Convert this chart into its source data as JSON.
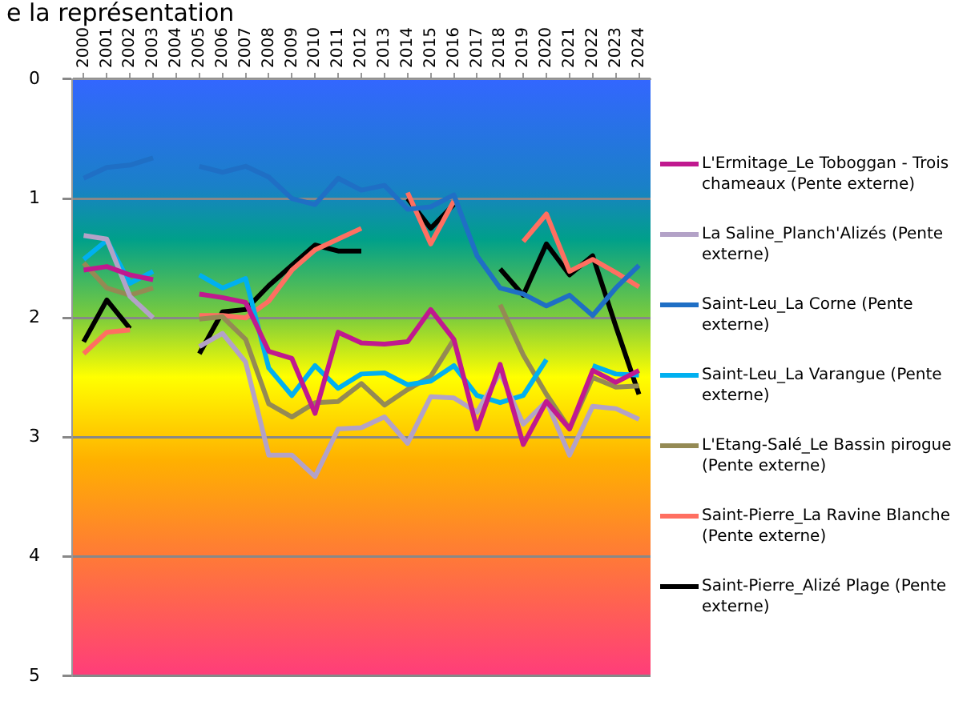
{
  "chart_data": {
    "type": "line",
    "title": "e la représentation",
    "categories": [
      "2000",
      "2001",
      "2002",
      "2003",
      "2004",
      "2005",
      "2006",
      "2007",
      "2008",
      "2009",
      "2010",
      "2011",
      "2012",
      "2013",
      "2014",
      "2015",
      "2016",
      "2017",
      "2018",
      "2019",
      "2020",
      "2021",
      "2022",
      "2023",
      "2024"
    ],
    "series": [
      {
        "name": "L'Ermitage_Le Toboggan - Trois chameaux (Pente externe)",
        "color": "#c0198f",
        "values": [
          1.6,
          1.57,
          1.64,
          1.68,
          null,
          1.8,
          1.83,
          1.87,
          2.28,
          2.34,
          2.8,
          2.12,
          2.21,
          2.22,
          2.2,
          1.93,
          2.18,
          2.93,
          2.39,
          3.06,
          2.7,
          2.93,
          2.44,
          2.54,
          2.44
        ]
      },
      {
        "name": "La Saline_Planch'Alizés (Pente externe)",
        "color": "#b3a2c7",
        "values": [
          1.31,
          1.34,
          1.82,
          2.0,
          null,
          2.24,
          2.13,
          2.37,
          3.15,
          3.15,
          3.33,
          2.93,
          2.92,
          2.83,
          3.05,
          2.66,
          2.67,
          2.79,
          2.46,
          2.89,
          2.7,
          3.15,
          2.74,
          2.76,
          2.85
        ]
      },
      {
        "name": "Saint-Leu_La Corne (Pente externe)",
        "color": "#1f6fc5",
        "values": [
          0.83,
          0.74,
          0.72,
          0.66,
          null,
          0.73,
          0.78,
          0.73,
          0.82,
          1.0,
          1.05,
          0.83,
          0.93,
          0.89,
          1.09,
          1.07,
          0.97,
          1.48,
          1.75,
          1.8,
          1.9,
          1.81,
          1.98,
          1.75,
          1.56
        ]
      },
      {
        "name": "Saint-Leu_La Varangue (Pente externe)",
        "color": "#00b0f0",
        "values": [
          1.51,
          1.35,
          1.71,
          1.61,
          null,
          1.64,
          1.75,
          1.67,
          2.42,
          2.65,
          2.4,
          2.59,
          2.47,
          2.46,
          2.56,
          2.53,
          2.4,
          2.65,
          2.71,
          2.65,
          2.35,
          null,
          2.4,
          2.47,
          2.48
        ]
      },
      {
        "name": "L'Etang-Salé_Le Bassin pirogue (Pente externe)",
        "color": "#948a54",
        "values": [
          1.54,
          1.75,
          1.81,
          1.75,
          null,
          2.01,
          1.99,
          2.18,
          2.72,
          2.83,
          2.71,
          2.7,
          2.55,
          2.73,
          2.6,
          2.49,
          2.18,
          null,
          1.89,
          2.31,
          2.64,
          2.93,
          2.5,
          2.58,
          2.57
        ]
      },
      {
        "name": "Saint-Pierre_La Ravine Blanche (Pente externe)",
        "color": "#ff6f61",
        "values": [
          2.3,
          2.12,
          2.1,
          null,
          null,
          1.98,
          1.98,
          2.0,
          1.86,
          1.6,
          1.43,
          1.34,
          1.25,
          null,
          0.95,
          1.38,
          1.02,
          null,
          null,
          1.36,
          1.13,
          1.61,
          1.51,
          1.62,
          1.74
        ]
      },
      {
        "name": "Saint-Pierre_Alizé Plage (Pente externe)",
        "color": "#000000",
        "values": [
          2.2,
          1.85,
          2.09,
          null,
          null,
          2.3,
          1.95,
          1.93,
          1.73,
          1.56,
          1.39,
          1.44,
          1.44,
          null,
          1.0,
          1.25,
          1.05,
          null,
          1.59,
          1.81,
          1.38,
          1.64,
          1.48,
          2.07,
          2.64
        ]
      }
    ],
    "ylim": [
      5,
      0
    ],
    "yticks": [
      0,
      1,
      2,
      3,
      4,
      5
    ],
    "grid": "y",
    "legend": "right",
    "marker": "none",
    "line_style": "solid"
  }
}
